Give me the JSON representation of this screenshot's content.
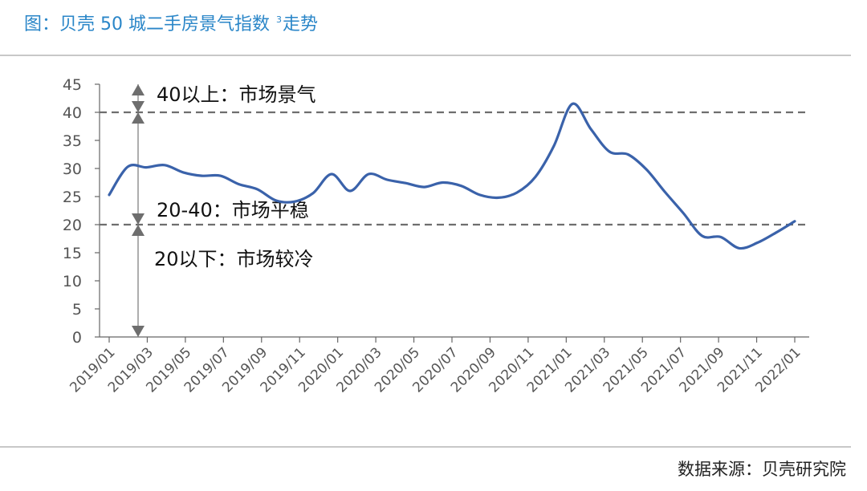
{
  "header": {
    "title_prefix": "图：贝壳 50 城二手房景气指数 ",
    "title_sup": "3",
    "title_suffix": "走势"
  },
  "footer": {
    "source": "数据来源：贝壳研究院"
  },
  "chart_data": {
    "type": "line",
    "title": "",
    "xlabel": "",
    "ylabel": "",
    "ylim": [
      0,
      45
    ],
    "yticks": [
      0,
      5,
      10,
      15,
      20,
      25,
      30,
      35,
      40,
      45
    ],
    "grid": false,
    "categories": [
      "2019/01",
      "2019/03",
      "2019/05",
      "2019/07",
      "2019/09",
      "2019/11",
      "2020/01",
      "2020/03",
      "2020/05",
      "2020/07",
      "2020/09",
      "2020/11",
      "2021/01",
      "2021/03",
      "2021/05",
      "2021/07",
      "2021/09",
      "2021/11",
      "2022/01"
    ],
    "series": [
      {
        "color": "#3a62aa",
        "x": [
          0,
          1,
          2,
          3,
          4,
          5,
          6,
          7,
          8,
          9,
          10,
          11,
          12,
          13,
          14,
          15,
          16,
          17,
          18,
          19,
          20,
          21,
          22,
          23,
          24,
          25,
          26,
          27,
          28,
          29,
          30,
          31,
          32,
          33,
          34,
          35,
          36,
          37
        ],
        "values": [
          25.3,
          30.3,
          30.2,
          30.6,
          29.3,
          28.7,
          28.7,
          27.2,
          26.3,
          24.3,
          24.1,
          25.6,
          29.0,
          26.0,
          29.0,
          28.0,
          27.4,
          26.7,
          27.5,
          26.9,
          25.3,
          24.8,
          25.7,
          28.5,
          34.0,
          41.5,
          37.0,
          33.0,
          32.5,
          29.8,
          25.8,
          22.0,
          18.0,
          17.8,
          15.8,
          16.8,
          18.6,
          20.6
        ]
      }
    ],
    "reference_lines": [
      40,
      20
    ],
    "annotations": [
      {
        "text": "40以上：市场景气"
      },
      {
        "text": "20-40：市场平稳"
      },
      {
        "text": "20以下：市场较冷"
      }
    ]
  }
}
